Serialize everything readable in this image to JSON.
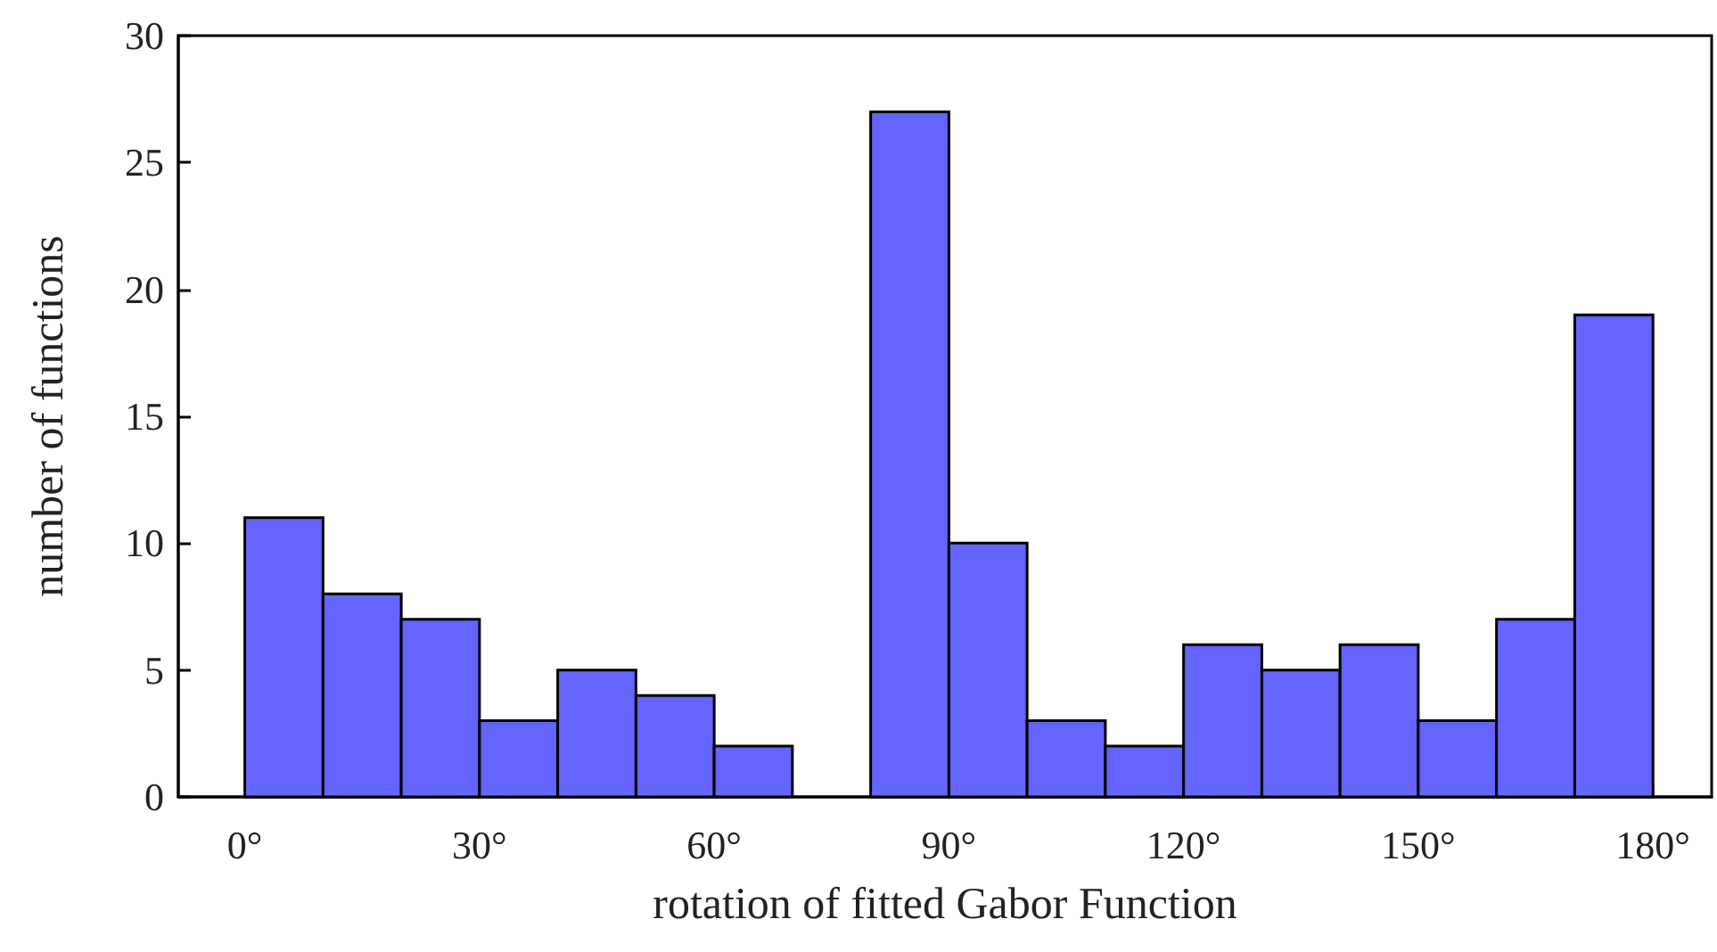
{
  "chart_data": {
    "type": "histogram",
    "xlabel": "rotation of fitted Gabor Function",
    "ylabel": "number of functions",
    "bins": [
      0,
      10,
      20,
      30,
      40,
      50,
      60,
      70,
      80,
      90,
      100,
      110,
      120,
      130,
      140,
      150,
      160,
      170,
      180
    ],
    "values": [
      11,
      8,
      7,
      3,
      5,
      4,
      2,
      0,
      27,
      10,
      3,
      2,
      6,
      5,
      6,
      3,
      7,
      19
    ],
    "color": "#6464ff",
    "xlim": [
      -8.5,
      187.5
    ],
    "xticks": [
      {
        "value": 0,
        "label": "0°"
      },
      {
        "value": 30,
        "label": "30°"
      },
      {
        "value": 60,
        "label": "60°"
      },
      {
        "value": 90,
        "label": "90°"
      },
      {
        "value": 120,
        "label": "120°"
      },
      {
        "value": 150,
        "label": "150°"
      },
      {
        "value": 180,
        "label": "180°"
      }
    ],
    "ylim": [
      0,
      30
    ],
    "yticks": [
      0,
      5,
      10,
      15,
      20,
      25,
      30
    ],
    "grid": false
  }
}
